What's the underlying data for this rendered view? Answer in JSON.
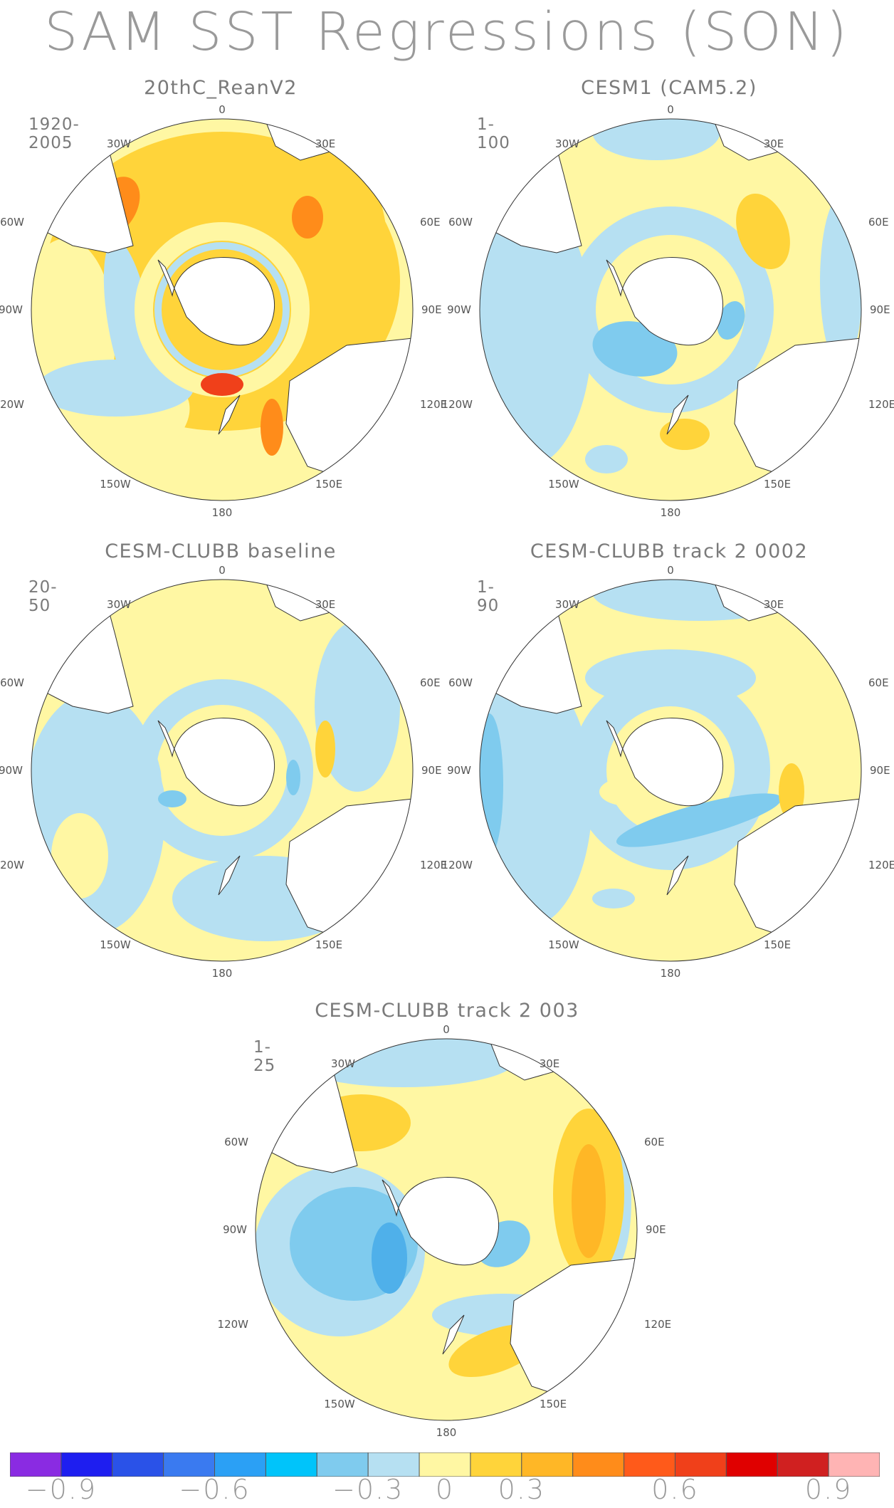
{
  "title": "SAM SST Regressions (SON)",
  "colors": {
    "land": "#ffffff",
    "ocean_base": "#fff7a3",
    "light_blue": "#b6e0f2",
    "mid_blue": "#7fcbee",
    "blue": "#4fb0ea",
    "yellow_orange": "#ffd43a",
    "orange": "#ffb726",
    "dark_orange": "#ff8c1a",
    "red": "#f0401a"
  },
  "panels": [
    {
      "title": "20thC_ReanV2",
      "years": "1920-2005"
    },
    {
      "title": "CESM1 (CAM5.2)",
      "years": "1-100"
    },
    {
      "title": "CESM-CLUBB baseline",
      "years": "20-50"
    },
    {
      "title": "CESM-CLUBB track 2 0002",
      "years": "1-90"
    },
    {
      "title": "CESM-CLUBB track 2 003",
      "years": "1-25"
    }
  ],
  "lon_labels": {
    "top": "0",
    "upper_left": "30W",
    "upper_right": "30E",
    "left_high": "60W",
    "right_high": "60E",
    "left": "90W",
    "right": "90E",
    "left_low": "120W",
    "right_low": "120E",
    "lower_left": "150W",
    "lower_right": "150E",
    "bottom": "180"
  },
  "colorbar": {
    "colors": [
      "#8a2be2",
      "#1e1ef0",
      "#2a52e8",
      "#3a7af0",
      "#2ba0f5",
      "#00c4fa",
      "#7fcbee",
      "#b6e0f2",
      "#fff7a3",
      "#ffd43a",
      "#ffb726",
      "#ff8c1a",
      "#ff5a1a",
      "#f0401a",
      "#e00000",
      "#d02020",
      "#ffb4b4"
    ],
    "tick_labels": [
      "−0.9",
      "−0.6",
      "−0.3",
      "0",
      "0.3",
      "0.6",
      "0.9"
    ]
  }
}
